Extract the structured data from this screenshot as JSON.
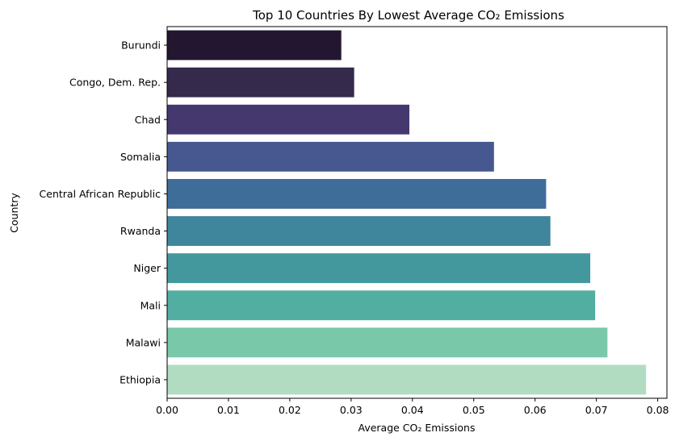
{
  "chart_data": {
    "type": "bar",
    "orientation": "horizontal",
    "title": "Top 10 Countries By Lowest Average CO₂ Emissions",
    "xlabel": "Average CO₂ Emissions",
    "ylabel": "Country",
    "categories": [
      "Burundi",
      "Congo, Dem. Rep.",
      "Chad",
      "Somalia",
      "Central African Republic",
      "Rwanda",
      "Niger",
      "Mali",
      "Malawi",
      "Ethiopia"
    ],
    "values": [
      0.0284,
      0.0305,
      0.0395,
      0.0533,
      0.0618,
      0.0625,
      0.069,
      0.0698,
      0.0718,
      0.0781
    ],
    "colors": [
      "#221631",
      "#352a4c",
      "#45386f",
      "#475890",
      "#3e6d9a",
      "#3f869d",
      "#43989e",
      "#53aea2",
      "#7ac8aa",
      "#b2dcc1"
    ],
    "xlim": [
      0,
      0.0815
    ],
    "xticks": [
      0.0,
      0.01,
      0.02,
      0.03,
      0.04,
      0.05,
      0.06,
      0.07,
      0.08
    ],
    "xtick_labels": [
      "0.00",
      "0.01",
      "0.02",
      "0.03",
      "0.04",
      "0.05",
      "0.06",
      "0.07",
      "0.08"
    ],
    "grid": false,
    "legend": "none"
  }
}
